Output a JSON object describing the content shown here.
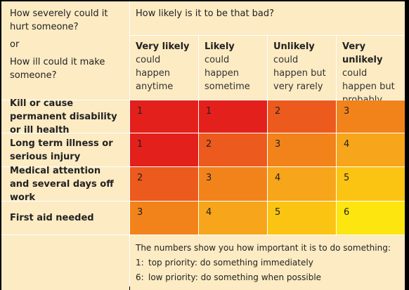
{
  "header": {
    "severity_question_1": "How severely could it hurt someone?",
    "or": "or",
    "severity_question_2": "How ill could it make someone?",
    "likelihood_question": "How likely is it to be that bad?"
  },
  "columns": [
    {
      "title": "Very likely",
      "desc": "could happen anytime"
    },
    {
      "title": "Likely",
      "desc": "could happen sometime"
    },
    {
      "title": "Unlikely",
      "desc": "could happen but very rarely"
    },
    {
      "title": "Very unlikely",
      "desc": "could happen but probably never will"
    }
  ],
  "rows": [
    {
      "label": "Kill or cause permanent disability or ill health",
      "values": [
        "1",
        "1",
        "2",
        "3"
      ]
    },
    {
      "label": "Long term illness or serious injury",
      "values": [
        "1",
        "2",
        "3",
        "4"
      ]
    },
    {
      "label": "Medical attention and several days off work",
      "values": [
        "2",
        "3",
        "4",
        "5"
      ]
    },
    {
      "label": "First aid needed",
      "values": [
        "3",
        "4",
        "5",
        "6"
      ]
    }
  ],
  "footer": {
    "note": "The numbers show you how important it is to do something:",
    "key": [
      {
        "number": "1:",
        "text": "top priority: do something immediately"
      },
      {
        "number": "6:",
        "text": "low priority: do something when possible"
      }
    ]
  }
}
